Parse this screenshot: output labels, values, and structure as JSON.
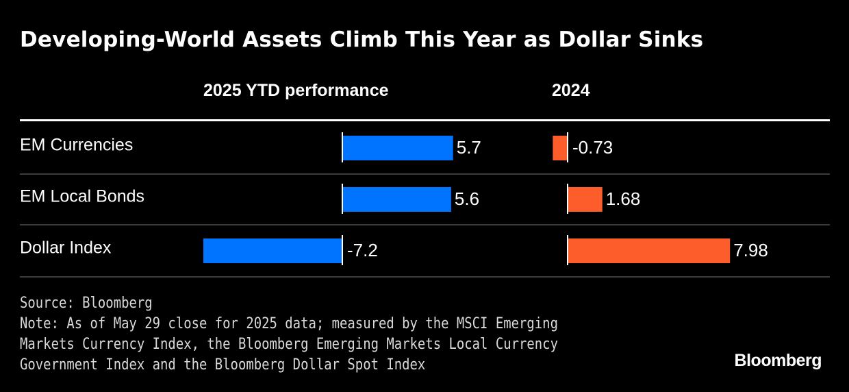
{
  "title": "Developing-World Assets Climb This Year as Dollar Sinks",
  "footer": {
    "source": "Source: Bloomberg",
    "note_lines": [
      "Note: As of May 29 close for 2025 data; measured by the MSCI Emerging",
      "Markets Currency Index, the Bloomberg Emerging Markets Local Currency",
      "Government Index and the Bloomberg Dollar Spot Index"
    ]
  },
  "brand": "Bloomberg",
  "chart_data": {
    "type": "bar",
    "orientation": "horizontal",
    "title": "Developing-World Assets Climb This Year as Dollar Sinks",
    "categories": [
      "EM Currencies",
      "EM Local Bonds",
      "Dollar Index"
    ],
    "series": [
      {
        "name": "2025 YTD performance",
        "values": [
          5.7,
          5.6,
          -7.2
        ],
        "labels": [
          "5.7",
          "5.6",
          "-7.2"
        ],
        "color": "#0073ff"
      },
      {
        "name": "2024",
        "values": [
          -0.73,
          1.68,
          7.98
        ],
        "labels": [
          "-0.73",
          "1.68",
          "7.98"
        ],
        "color": "#fd5d2b"
      }
    ],
    "grid": false,
    "legend": "column-headers"
  }
}
